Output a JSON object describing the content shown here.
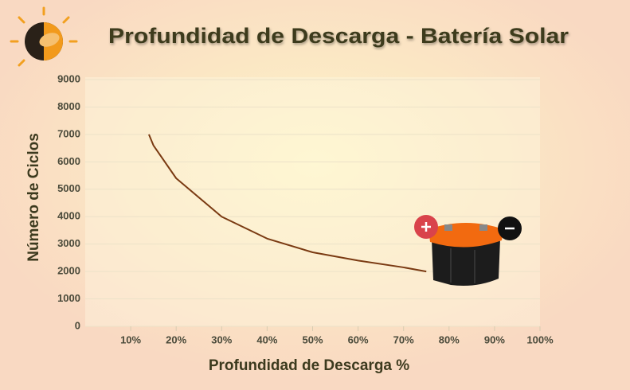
{
  "chart_data": {
    "type": "line",
    "title": "Profundidad de Descarga - Batería Solar",
    "x_label": "Profundidad de Descarga %",
    "y_label": "Número de Ciclos",
    "x": [
      14,
      15,
      20,
      30,
      40,
      50,
      60,
      70,
      75
    ],
    "series": [
      {
        "color": "#7a3a12",
        "values": [
          7000,
          6600,
          5400,
          4000,
          3200,
          2700,
          2400,
          2150,
          2000
        ]
      }
    ],
    "xlim": [
      0,
      100
    ],
    "xticks": [
      {
        "value": 10,
        "label": "10%"
      },
      {
        "value": 20,
        "label": "20%"
      },
      {
        "value": 30,
        "label": "30%"
      },
      {
        "value": 40,
        "label": "40%"
      },
      {
        "value": 50,
        "label": "50%"
      },
      {
        "value": 60,
        "label": "60%"
      },
      {
        "value": 70,
        "label": "70%"
      },
      {
        "value": 80,
        "label": "80%"
      },
      {
        "value": 90,
        "label": "90%"
      },
      {
        "value": 100,
        "label": "100%"
      }
    ],
    "ylim": [
      0,
      9000
    ],
    "yticks": [
      0,
      1000,
      2000,
      3000,
      4000,
      5000,
      6000,
      7000,
      8000,
      9000
    ],
    "grid": true
  }
}
